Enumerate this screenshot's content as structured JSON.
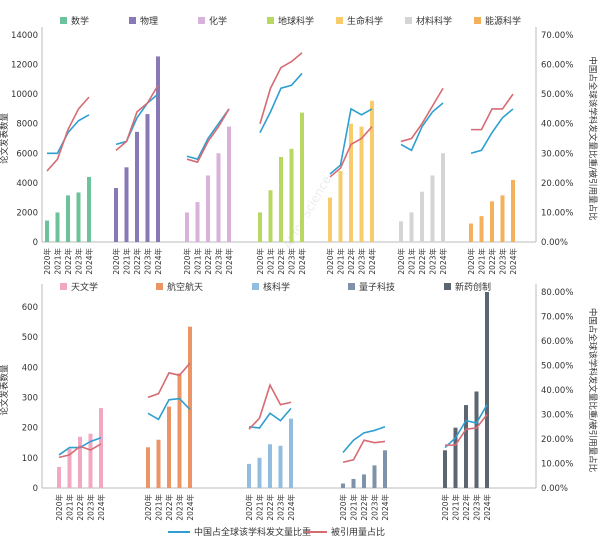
{
  "chart_data": [
    {
      "type": "bar",
      "categories": [
        "2020年",
        "2021年",
        "2022年",
        "2023年",
        "2024年"
      ],
      "ylabel": "论文发表数量",
      "y2label": "中国占全球该学科发文量比重/被引用量占比",
      "ylim": [
        0,
        14000
      ],
      "y2lim": [
        0,
        0.7
      ],
      "yticks": [
        "0",
        "2000",
        "4000",
        "6000",
        "8000",
        "10000",
        "12000",
        "14000"
      ],
      "y2ticks": [
        "0.00%",
        "10.00%",
        "20.00%",
        "30.00%",
        "40.00%",
        "50.00%",
        "60.00%",
        "70.00%"
      ],
      "legend_position": "top",
      "groups": [
        {
          "name": "数学",
          "color": "#6cc29a",
          "values": [
            1450,
            2000,
            3150,
            3350,
            4400
          ],
          "share": [
            0.3,
            0.3,
            0.37,
            0.41,
            0.43
          ],
          "cited": [
            0.24,
            0.28,
            0.38,
            0.45,
            0.49
          ]
        },
        {
          "name": "物理",
          "color": "#8878b6",
          "values": [
            3650,
            5050,
            7450,
            8650,
            12550
          ],
          "share": [
            0.33,
            0.34,
            0.42,
            0.47,
            0.5
          ],
          "cited": [
            0.31,
            0.34,
            0.44,
            0.47,
            0.53
          ]
        },
        {
          "name": "化学",
          "color": "#d8b2da",
          "values": [
            2000,
            2700,
            4500,
            6000,
            7800
          ],
          "share": [
            0.29,
            0.28,
            0.35,
            0.4,
            0.45
          ],
          "cited": [
            0.28,
            0.27,
            0.34,
            0.39,
            0.45
          ]
        },
        {
          "name": "地球科学",
          "color": "#b9d862",
          "values": [
            2000,
            3500,
            5750,
            6300,
            8750
          ],
          "share": [
            0.37,
            0.44,
            0.52,
            0.53,
            0.57
          ],
          "cited": [
            0.4,
            0.52,
            0.59,
            0.61,
            0.64
          ]
        },
        {
          "name": "生命科学",
          "color": "#f8cc6a",
          "values": [
            3000,
            4800,
            8000,
            7800,
            9550
          ],
          "share": [
            0.23,
            0.26,
            0.45,
            0.43,
            0.45
          ],
          "cited": [
            0.22,
            0.25,
            0.33,
            0.35,
            0.39
          ]
        },
        {
          "name": "材料科学",
          "color": "#d4d4d4",
          "values": [
            1400,
            2000,
            3400,
            4500,
            6000
          ],
          "share": [
            0.33,
            0.31,
            0.39,
            0.44,
            0.47
          ],
          "cited": [
            0.34,
            0.35,
            0.4,
            0.46,
            0.52
          ]
        },
        {
          "name": "能源科学",
          "color": "#f3b15b",
          "values": [
            1250,
            1750,
            2750,
            3150,
            4200
          ],
          "share": [
            0.3,
            0.31,
            0.37,
            0.42,
            0.45
          ],
          "cited": [
            0.38,
            0.38,
            0.45,
            0.45,
            0.5
          ]
        }
      ]
    },
    {
      "type": "bar",
      "categories": [
        "2020年",
        "2021年",
        "2022年",
        "2023年",
        "2024年"
      ],
      "ylabel": "论文发表数量",
      "y2label": "中国占全球该学科发文量比重/被引用量占比",
      "ylim": [
        0,
        650
      ],
      "y2lim": [
        0,
        0.8
      ],
      "yticks": [
        "0",
        "100",
        "200",
        "300",
        "400",
        "500",
        "600"
      ],
      "y2ticks": [
        "0.00%",
        "10.00%",
        "20.00%",
        "30.00%",
        "40.00%",
        "50.00%",
        "60.00%",
        "70.00%",
        "80.00%"
      ],
      "legend_position": "top",
      "groups": [
        {
          "name": "天文学",
          "color": "#f1a8c3",
          "values": [
            70,
            130,
            170,
            180,
            265
          ],
          "share": [
            0.135,
            0.165,
            0.165,
            0.19,
            0.205
          ],
          "cited": [
            0.125,
            0.135,
            0.17,
            0.155,
            0.18
          ]
        },
        {
          "name": "航空航天",
          "color": "#eb9466",
          "values": [
            135,
            160,
            270,
            380,
            535
          ],
          "share": [
            0.305,
            0.28,
            0.36,
            0.365,
            0.32
          ],
          "cited": [
            0.37,
            0.385,
            0.47,
            0.46,
            0.51
          ]
        },
        {
          "name": "核科学",
          "color": "#93bde0",
          "values": [
            80,
            100,
            145,
            140,
            230
          ],
          "share": [
            0.25,
            0.245,
            0.305,
            0.275,
            0.325
          ],
          "cited": [
            0.24,
            0.285,
            0.42,
            0.34,
            0.35
          ]
        },
        {
          "name": "量子科技",
          "color": "#7e93aa",
          "values": [
            15,
            30,
            45,
            75,
            125
          ],
          "share": [
            0.145,
            0.195,
            0.225,
            0.235,
            0.25
          ],
          "cited": [
            0.105,
            0.115,
            0.195,
            0.185,
            0.19
          ]
        },
        {
          "name": "新药创制",
          "color": "#5b6670",
          "values": [
            125,
            200,
            275,
            320,
            650
          ],
          "share": [
            0.165,
            0.205,
            0.275,
            0.265,
            0.34
          ],
          "cited": [
            0.175,
            0.175,
            0.24,
            0.245,
            0.3
          ]
        }
      ]
    }
  ],
  "legend": {
    "share_label": "中国占全球该学科发文量比重",
    "cited_label": "被引用量占比",
    "share_color": "#2f9fd0",
    "cited_color": "#d76b74"
  },
  "watermark": "AI for Science"
}
